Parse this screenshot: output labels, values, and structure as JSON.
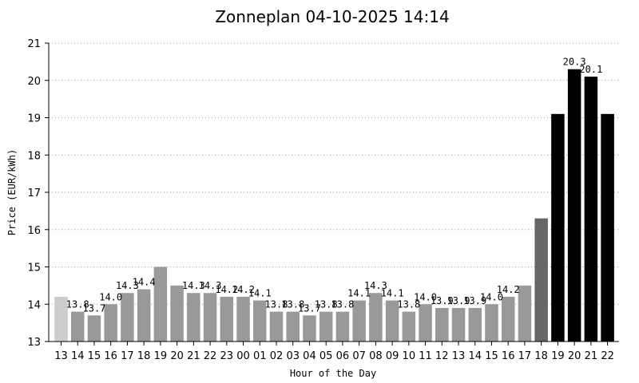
{
  "chart_data": {
    "type": "bar",
    "title": "Zonneplan 04-10-2025 14:14",
    "xlabel": "Hour of the Day",
    "ylabel": "Price (EUR/kWh)",
    "ylim": [
      13,
      21
    ],
    "yticks": [
      13,
      14,
      15,
      16,
      17,
      18,
      19,
      20,
      21
    ],
    "grid": true,
    "categories": [
      "13",
      "14",
      "15",
      "16",
      "17",
      "18",
      "19",
      "20",
      "21",
      "22",
      "23",
      "00",
      "01",
      "02",
      "03",
      "04",
      "05",
      "06",
      "07",
      "08",
      "09",
      "10",
      "11",
      "12",
      "13",
      "14",
      "15",
      "16",
      "17",
      "18",
      "19",
      "20",
      "21",
      "22"
    ],
    "values": [
      14.2,
      13.8,
      13.7,
      14.0,
      14.3,
      14.4,
      15.0,
      14.5,
      14.3,
      14.3,
      14.2,
      14.2,
      14.1,
      13.8,
      13.8,
      13.7,
      13.8,
      13.8,
      14.1,
      14.3,
      14.1,
      13.8,
      14.0,
      13.9,
      13.9,
      13.9,
      14.0,
      14.2,
      14.5,
      16.3,
      19.1,
      20.3,
      20.1,
      19.1
    ],
    "colors": [
      "#cccccc",
      "#999999",
      "#999999",
      "#999999",
      "#999999",
      "#999999",
      "#999999",
      "#999999",
      "#999999",
      "#999999",
      "#999999",
      "#999999",
      "#999999",
      "#999999",
      "#999999",
      "#999999",
      "#999999",
      "#999999",
      "#999999",
      "#999999",
      "#999999",
      "#999999",
      "#999999",
      "#999999",
      "#999999",
      "#999999",
      "#999999",
      "#999999",
      "#999999",
      "#666666",
      "#000000",
      "#000000",
      "#000000",
      "#000000"
    ],
    "data_labels": [
      "",
      "13.8",
      "13.7",
      "14.0",
      "14.3",
      "14.4",
      "",
      "",
      "14.3",
      "14.3",
      "14.2",
      "14.2",
      "14.1",
      "13.8",
      "13.8",
      "13.7",
      "13.8",
      "13.8",
      "14.1",
      "14.3",
      "14.1",
      "13.8",
      "14.0",
      "13.9",
      "13.9",
      "13.9",
      "14.0",
      "14.2",
      "",
      "",
      "",
      "20.3",
      "20.1",
      ""
    ]
  }
}
